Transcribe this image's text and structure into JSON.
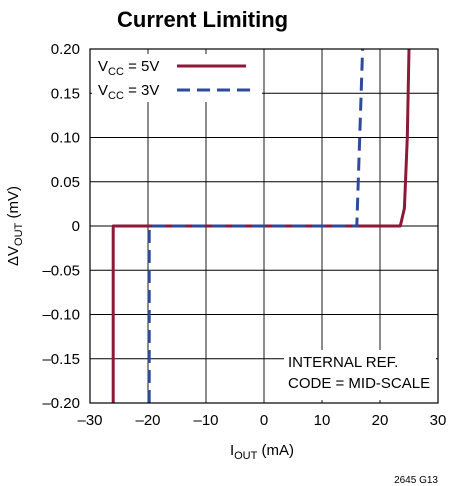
{
  "chart_data": {
    "type": "line",
    "title": "Current Limiting",
    "xlabel": {
      "base": "I",
      "sub": "OUT",
      "rest": " (mA)"
    },
    "ylabel": {
      "base": "ΔV",
      "sub": "OUT",
      "rest": " (mV)"
    },
    "xlim": [
      -30,
      30
    ],
    "ylim": [
      -0.2,
      0.2
    ],
    "x_ticks": [
      -30,
      -20,
      -10,
      0,
      10,
      20,
      30
    ],
    "x_tick_labels": [
      "–30",
      "–20",
      "–10",
      "0",
      "10",
      "20",
      "30"
    ],
    "y_ticks": [
      0.2,
      0.15,
      0.1,
      0.05,
      0,
      -0.05,
      -0.1,
      -0.15,
      -0.2
    ],
    "y_tick_labels": [
      "0.20",
      "0.15",
      "0.10",
      "0.05",
      "0",
      "–0.05",
      "–0.10",
      "–0.15",
      "–0.20"
    ],
    "grid": true,
    "legend_position": "top-left",
    "series": [
      {
        "name": "VCC = 5V",
        "legend": {
          "base": "V",
          "sub": "CC",
          "rest": " = 5V"
        },
        "color": "#8b1a3a",
        "style": "solid",
        "x": [
          -26.0,
          -26.0,
          -25.5,
          23.5,
          24.2,
          24.7,
          25.0
        ],
        "y": [
          -0.2,
          0.0,
          0.0,
          0.0,
          0.02,
          0.1,
          0.2
        ]
      },
      {
        "name": "VCC = 3V",
        "legend": {
          "base": "V",
          "sub": "CC",
          "rest": " = 3V"
        },
        "color": "#2e4a9a",
        "style": "dashed",
        "x": [
          -19.8,
          -19.8,
          -19.5,
          16.0,
          17.0
        ],
        "y": [
          -0.2,
          0.0,
          0.0,
          0.0,
          0.2
        ]
      }
    ],
    "annotations": [
      "INTERNAL REF.",
      "CODE = MID-SCALE"
    ],
    "figure_id": "2645 G13"
  }
}
